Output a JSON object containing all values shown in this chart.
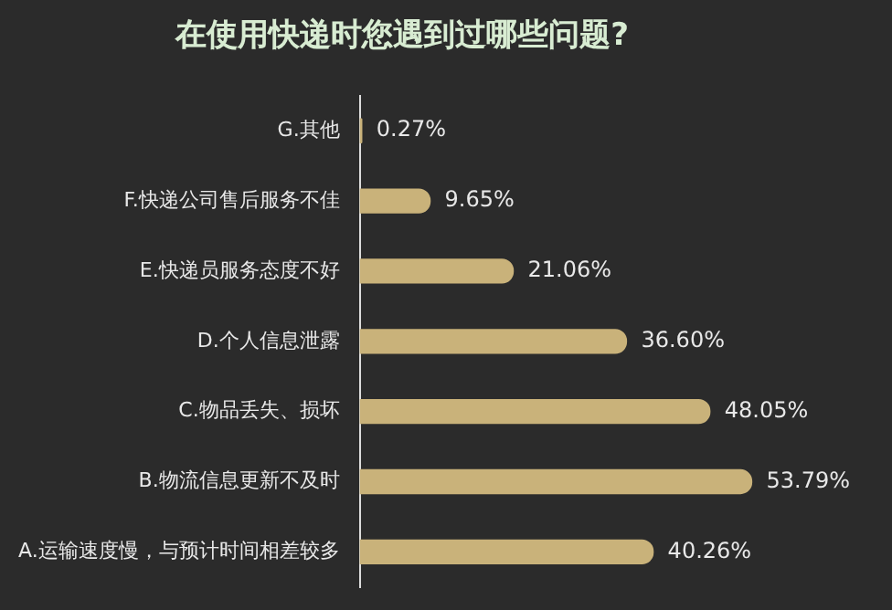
{
  "chart_data": {
    "type": "bar",
    "orientation": "horizontal",
    "title": "在使用快递时您遇到过哪些问题?",
    "categories": [
      "G.其他",
      "F.快递公司售后服务不佳",
      "E.快递员服务态度不好",
      "D.个人信息泄露",
      "C.物品丢失、损坏",
      "B.物流信息更新不及时",
      "A.运输速度慢，与预计时间相差较多"
    ],
    "values": [
      0.27,
      9.65,
      21.06,
      36.6,
      48.05,
      53.79,
      40.26
    ],
    "value_labels": [
      "0.27%",
      "9.65%",
      "21.06%",
      "36.60%",
      "48.05%",
      "53.79%",
      "40.26%"
    ],
    "color": "#c9b27a",
    "grid": false,
    "legend": false,
    "tick_labels": "y"
  }
}
